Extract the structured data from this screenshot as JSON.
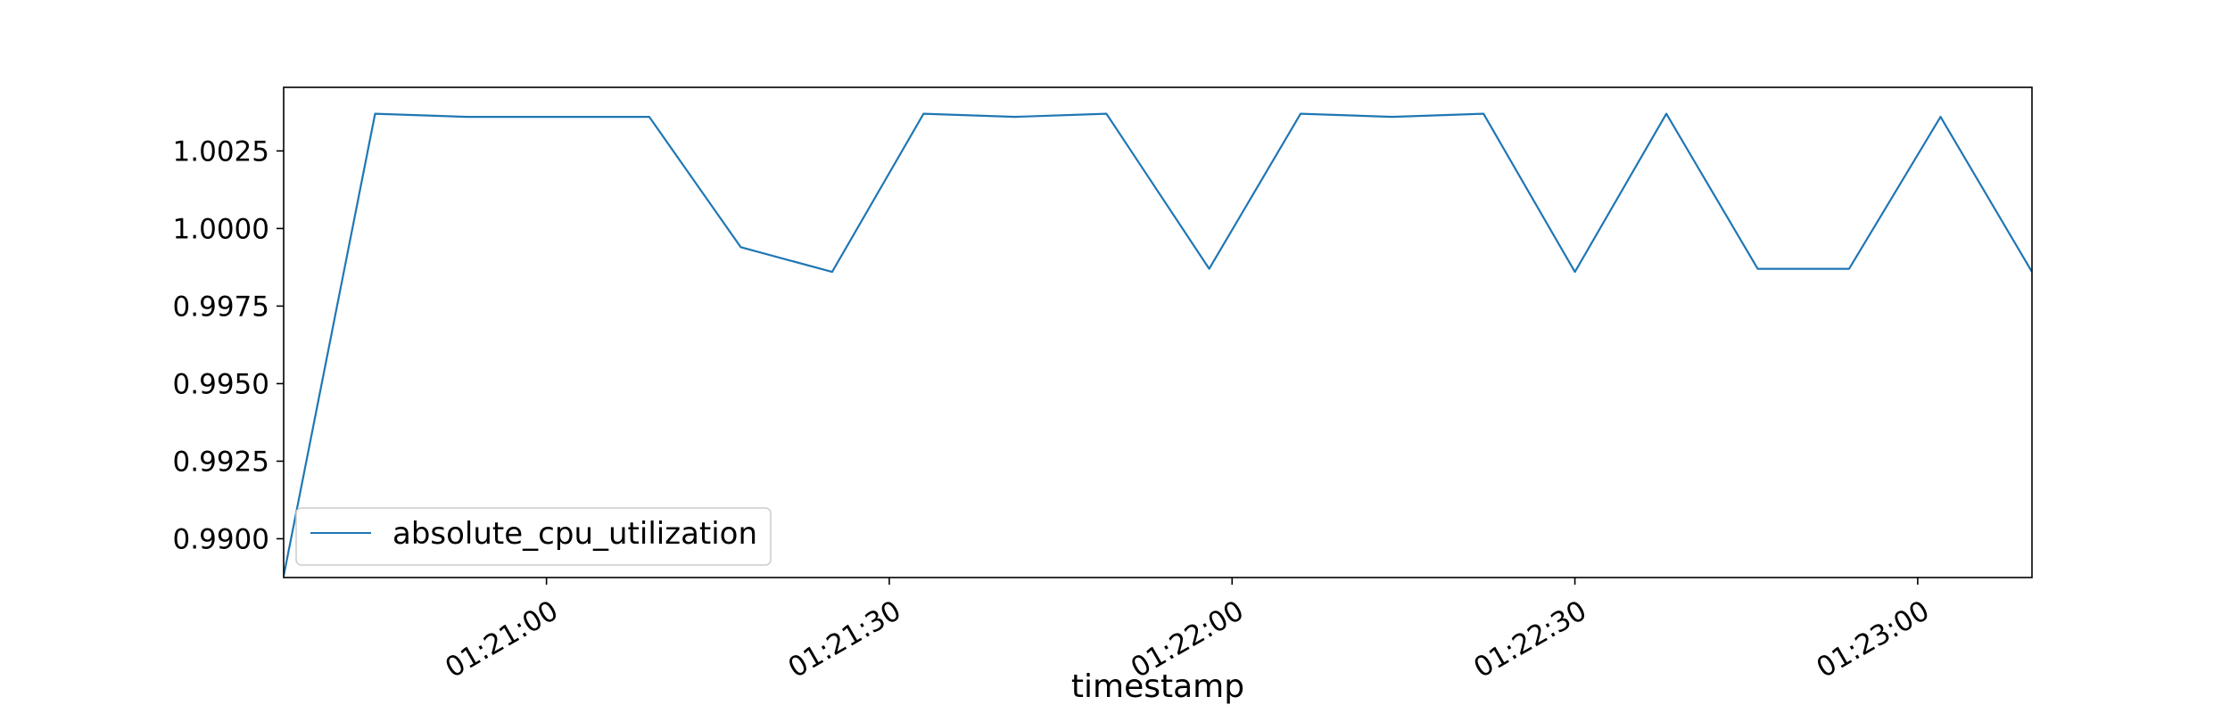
{
  "chart_data": {
    "type": "line",
    "title": "",
    "xlabel": "timestamp",
    "ylabel": "",
    "x_unit": "seconds after 01:20:00",
    "xlim": [
      0,
      153
    ],
    "ylim": [
      0.98875,
      1.00455
    ],
    "yticks": [
      0.99,
      0.9925,
      0.995,
      0.9975,
      1.0,
      1.0025
    ],
    "ytick_labels": [
      "0.9900",
      "0.9925",
      "0.9950",
      "0.9975",
      "1.0000",
      "1.0025"
    ],
    "xticks": [
      23,
      53,
      83,
      113,
      143
    ],
    "xtick_labels": [
      "01:21:00",
      "01:21:30",
      "01:22:00",
      "01:22:30",
      "01:23:00"
    ],
    "legend": {
      "position": "lower-left",
      "entries": [
        "absolute_cpu_utilization"
      ]
    },
    "grid": false,
    "color": "#1f77b4",
    "series": [
      {
        "name": "absolute_cpu_utilization",
        "x": [
          0,
          8,
          16,
          24,
          32,
          40,
          48,
          56,
          64,
          72,
          81,
          89,
          97,
          105,
          113,
          121,
          129,
          137,
          145,
          153
        ],
        "values": [
          0.9888,
          1.0037,
          1.0036,
          1.0036,
          1.0036,
          0.9994,
          0.9986,
          1.0037,
          1.0036,
          1.0037,
          0.9987,
          1.0037,
          1.0036,
          1.0037,
          0.9986,
          1.0037,
          0.9987,
          0.9987,
          1.0036,
          0.9986
        ]
      }
    ]
  }
}
